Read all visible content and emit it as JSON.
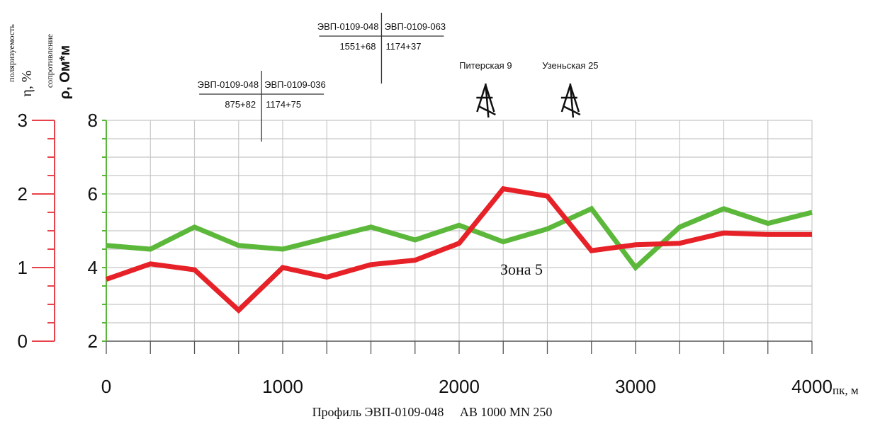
{
  "chart_data": {
    "type": "line",
    "title": "Профиль ЭВП-0109-048     АВ 1000 MN 250",
    "xlabel": "пк, м",
    "xlim": [
      0,
      4000
    ],
    "x_ticks": [
      0,
      1000,
      2000,
      3000,
      4000
    ],
    "y_left": {
      "label_main": "η, %",
      "label_sub": "поляризуемость",
      "ylim": [
        0,
        3
      ],
      "ticks": [
        0,
        1,
        2,
        3
      ],
      "color": "#e8424a"
    },
    "y_right": {
      "label_main": "ρ, Ом*м",
      "label_sub": "сопротивление",
      "ylim": [
        2,
        8
      ],
      "ticks": [
        2,
        4,
        6,
        8
      ],
      "color": "#5ab53a"
    },
    "grid": true,
    "x": [
      0,
      250,
      500,
      750,
      1000,
      1250,
      1500,
      1750,
      2000,
      2250,
      2500,
      2750,
      3000,
      3250,
      3500,
      3750,
      4000
    ],
    "series": [
      {
        "axis": "right",
        "color": "#5cb83a",
        "values": [
          4.6,
          4.5,
          5.1,
          4.6,
          4.5,
          4.8,
          5.1,
          4.75,
          5.15,
          4.7,
          5.05,
          5.6,
          4.0,
          5.1,
          5.6,
          5.2,
          5.5
        ]
      },
      {
        "axis": "left",
        "color": "#e62127",
        "values": [
          0.84,
          1.05,
          0.97,
          0.42,
          1.0,
          0.87,
          1.04,
          1.1,
          1.33,
          2.07,
          1.97,
          1.23,
          1.31,
          1.33,
          1.47,
          1.45,
          1.45
        ]
      }
    ],
    "annotations": [
      {
        "text": "Зона 5",
        "x": 2570,
        "y_right": 4.05
      }
    ],
    "wells": [
      {
        "label": "Питерская 9",
        "x": 2150
      },
      {
        "label": "Узеньская 25",
        "x": 2630
      }
    ],
    "intersections": [
      {
        "x": 880,
        "top_left": "ЭВП-0109-048",
        "top_right": "ЭВП-0109-036",
        "bottom_left": "875+82",
        "bottom_right": "1174+75"
      },
      {
        "x": 1560,
        "top_left": "ЭВП-0109-048",
        "top_right": "ЭВП-0109-063",
        "bottom_left": "1551+68",
        "bottom_right": "1174+37"
      }
    ]
  }
}
